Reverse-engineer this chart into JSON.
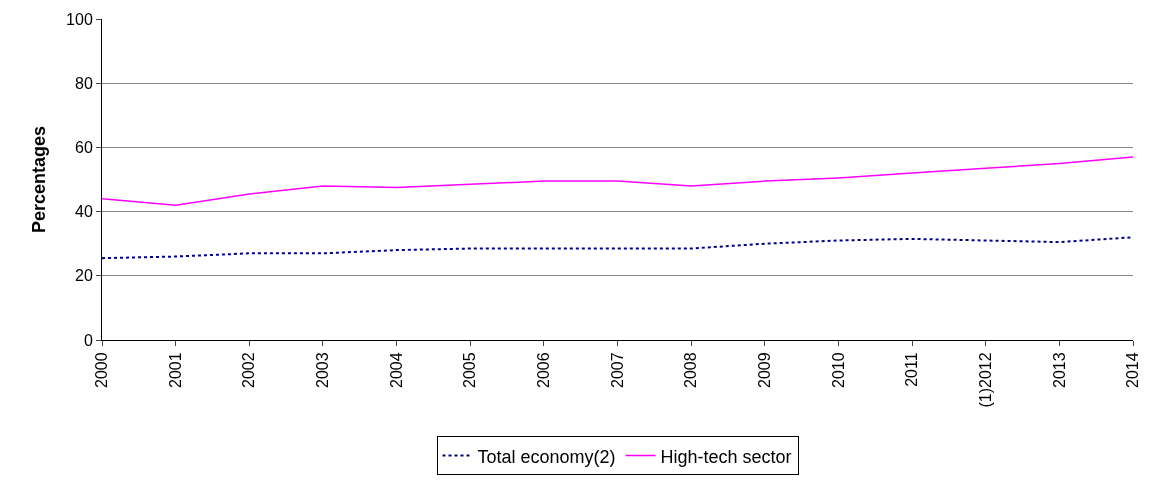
{
  "chart_data": {
    "type": "line",
    "ylabel": "Percentages",
    "categories": [
      "2000",
      "2001",
      "2002",
      "2003",
      "2004",
      "2005",
      "2006",
      "2007",
      "2008",
      "2009",
      "2010",
      "2011",
      "(1)2012",
      "2013",
      "2014"
    ],
    "series": [
      {
        "name": "Total economy(2)",
        "color": "#000080",
        "line_style": "dotted",
        "values": [
          25.5,
          26,
          27,
          27,
          28,
          28.5,
          28.5,
          28.5,
          28.5,
          30,
          31,
          31.5,
          31,
          30.5,
          32
        ]
      },
      {
        "name": "High-tech sector",
        "color": "#ff00ff",
        "line_style": "solid",
        "values": [
          44,
          42,
          45.5,
          48,
          47.5,
          48.5,
          49.5,
          49.5,
          48,
          49.5,
          50.5,
          52,
          53.5,
          55,
          57
        ]
      }
    ],
    "ylim": [
      0,
      100
    ],
    "yticks": [
      0,
      20,
      40,
      60,
      80,
      100
    ],
    "grid": "y",
    "legend": "bottom",
    "marker": "none"
  }
}
